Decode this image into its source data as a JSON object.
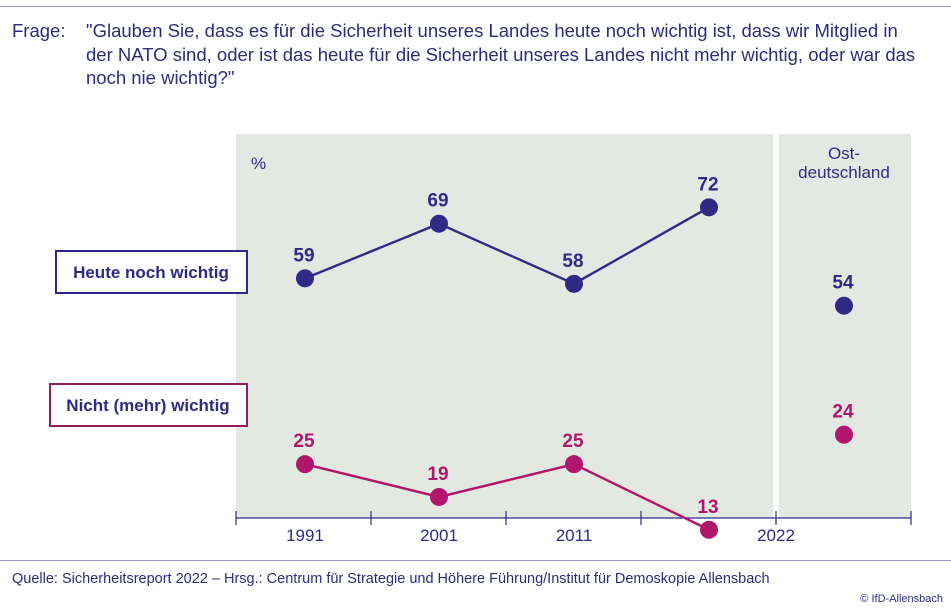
{
  "question": {
    "label": "Frage:",
    "text": "\"Glauben Sie, dass es für die Sicherheit unseres Landes heute noch wichtig ist, dass wir Mitglied in der NATO sind, oder ist das heute für die Sicherheit unseres Landes nicht mehr wichtig, oder war das noch nie wichtig?\""
  },
  "chart_data": {
    "type": "line",
    "unit_label": "%",
    "x": [
      "1991",
      "2001",
      "2011",
      "2022"
    ],
    "series": [
      {
        "name": "Heute noch wichtig",
        "values": [
          59,
          69,
          58,
          72
        ],
        "color": "#2e2a86"
      },
      {
        "name": "Nicht (mehr) wichtig",
        "values": [
          25,
          19,
          25,
          13
        ],
        "color": "#b0166a"
      }
    ],
    "east_panel": {
      "label_line1": "Ost-",
      "label_line2": "deutschland",
      "values": [
        54,
        24
      ]
    },
    "panel_background": "#e3e8e3"
  },
  "footer": {
    "source": "Quelle: Sicherheitsreport 2022 – Hrsg.: Centrum für Strategie und Höhere Führung/Institut für Demoskopie Allensbach",
    "copyright": "© IfD-Allensbach"
  }
}
